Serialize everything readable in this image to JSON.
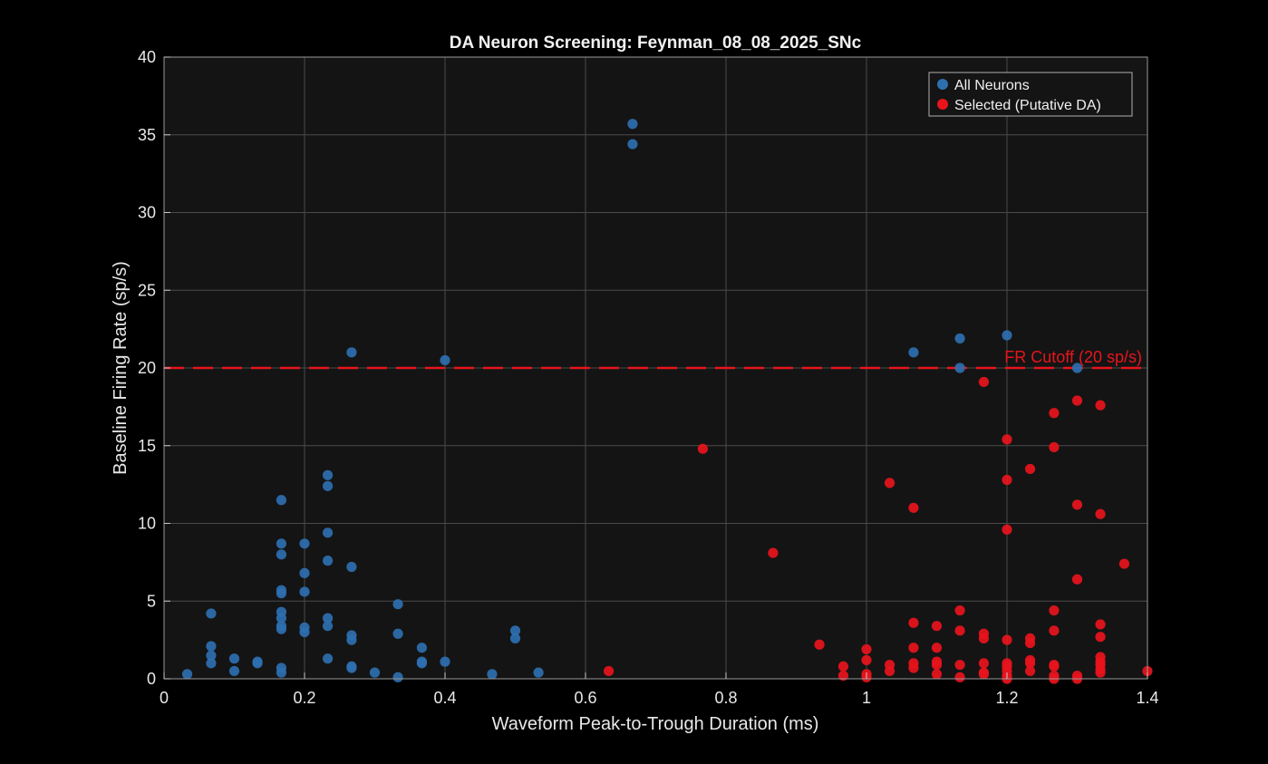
{
  "chart_data": {
    "type": "scatter",
    "title": "DA Neuron Screening: Feynman_08_08_2025_SNc",
    "xlabel": "Waveform Peak-to-Trough Duration (ms)",
    "ylabel": "Baseline Firing Rate (sp/s)",
    "xlim": [
      0,
      1.4
    ],
    "ylim": [
      0,
      40
    ],
    "xticks": [
      "0",
      "0.2",
      "0.4",
      "0.6",
      "0.8",
      "1",
      "1.2",
      "1.4"
    ],
    "xtick_values": [
      0,
      0.2,
      0.4,
      0.6,
      0.8,
      1.0,
      1.2,
      1.4
    ],
    "yticks": [
      "0",
      "5",
      "10",
      "15",
      "20",
      "25",
      "30",
      "35",
      "40"
    ],
    "ytick_values": [
      0,
      5,
      10,
      15,
      20,
      25,
      30,
      35,
      40
    ],
    "grid": true,
    "legend_position": "top-right",
    "background": "#141414",
    "cutoff": {
      "y": 20,
      "label": "FR Cutoff (20 sp/s)",
      "color": "#e8141c"
    },
    "series": [
      {
        "name": "All Neurons",
        "color": "#2e6fb0",
        "points": [
          [
            0.033,
            0.3
          ],
          [
            0.067,
            1.0
          ],
          [
            0.067,
            1.5
          ],
          [
            0.067,
            2.1
          ],
          [
            0.067,
            4.2
          ],
          [
            0.1,
            0.5
          ],
          [
            0.1,
            1.3
          ],
          [
            0.133,
            1.0
          ],
          [
            0.133,
            1.1
          ],
          [
            0.167,
            0.4
          ],
          [
            0.167,
            0.7
          ],
          [
            0.167,
            3.2
          ],
          [
            0.167,
            3.4
          ],
          [
            0.167,
            3.9
          ],
          [
            0.167,
            4.3
          ],
          [
            0.167,
            5.5
          ],
          [
            0.167,
            5.7
          ],
          [
            0.167,
            8.0
          ],
          [
            0.167,
            8.7
          ],
          [
            0.167,
            11.5
          ],
          [
            0.2,
            3.0
          ],
          [
            0.2,
            3.3
          ],
          [
            0.2,
            5.6
          ],
          [
            0.2,
            6.8
          ],
          [
            0.2,
            8.7
          ],
          [
            0.233,
            1.3
          ],
          [
            0.233,
            3.4
          ],
          [
            0.233,
            3.9
          ],
          [
            0.233,
            7.6
          ],
          [
            0.233,
            9.4
          ],
          [
            0.233,
            12.4
          ],
          [
            0.233,
            13.1
          ],
          [
            0.267,
            0.7
          ],
          [
            0.267,
            0.8
          ],
          [
            0.267,
            2.5
          ],
          [
            0.267,
            2.8
          ],
          [
            0.267,
            7.2
          ],
          [
            0.267,
            21.0
          ],
          [
            0.3,
            0.4
          ],
          [
            0.333,
            0.1
          ],
          [
            0.333,
            2.9
          ],
          [
            0.333,
            4.8
          ],
          [
            0.367,
            1.0
          ],
          [
            0.367,
            1.1
          ],
          [
            0.367,
            2.0
          ],
          [
            0.4,
            1.1
          ],
          [
            0.4,
            20.5
          ],
          [
            0.467,
            0.3
          ],
          [
            0.5,
            2.6
          ],
          [
            0.5,
            3.1
          ],
          [
            0.533,
            0.4
          ],
          [
            0.667,
            34.4
          ],
          [
            0.667,
            35.7
          ],
          [
            1.067,
            21.0
          ],
          [
            1.133,
            20.0
          ],
          [
            1.133,
            21.9
          ],
          [
            1.2,
            22.1
          ],
          [
            1.3,
            20.0
          ]
        ]
      },
      {
        "name": "Selected (Putative DA)",
        "color": "#e8141c",
        "points": [
          [
            0.633,
            0.5
          ],
          [
            0.767,
            14.8
          ],
          [
            0.867,
            8.1
          ],
          [
            0.933,
            2.2
          ],
          [
            0.967,
            0.2
          ],
          [
            0.967,
            0.8
          ],
          [
            1.0,
            0.1
          ],
          [
            1.0,
            0.3
          ],
          [
            1.0,
            1.2
          ],
          [
            1.0,
            1.9
          ],
          [
            1.033,
            0.5
          ],
          [
            1.033,
            0.9
          ],
          [
            1.033,
            12.6
          ],
          [
            1.067,
            0.7
          ],
          [
            1.067,
            1.0
          ],
          [
            1.067,
            2.0
          ],
          [
            1.067,
            3.6
          ],
          [
            1.067,
            11.0
          ],
          [
            1.1,
            0.3
          ],
          [
            1.1,
            0.9
          ],
          [
            1.1,
            1.1
          ],
          [
            1.1,
            2.0
          ],
          [
            1.1,
            3.4
          ],
          [
            1.133,
            0.1
          ],
          [
            1.133,
            0.9
          ],
          [
            1.133,
            3.1
          ],
          [
            1.133,
            4.4
          ],
          [
            1.167,
            0.3
          ],
          [
            1.167,
            0.4
          ],
          [
            1.167,
            1.0
          ],
          [
            1.167,
            2.6
          ],
          [
            1.167,
            2.9
          ],
          [
            1.167,
            19.1
          ],
          [
            1.2,
            0.0
          ],
          [
            1.2,
            0.2
          ],
          [
            1.2,
            0.5
          ],
          [
            1.2,
            0.8
          ],
          [
            1.2,
            1.0
          ],
          [
            1.2,
            2.5
          ],
          [
            1.2,
            9.6
          ],
          [
            1.2,
            12.8
          ],
          [
            1.2,
            15.4
          ],
          [
            1.233,
            0.5
          ],
          [
            1.233,
            1.0
          ],
          [
            1.233,
            1.2
          ],
          [
            1.233,
            2.3
          ],
          [
            1.233,
            2.6
          ],
          [
            1.233,
            13.5
          ],
          [
            1.267,
            0.0
          ],
          [
            1.267,
            0.2
          ],
          [
            1.267,
            0.8
          ],
          [
            1.267,
            0.9
          ],
          [
            1.267,
            3.1
          ],
          [
            1.267,
            4.4
          ],
          [
            1.267,
            14.9
          ],
          [
            1.267,
            17.1
          ],
          [
            1.3,
            0.0
          ],
          [
            1.3,
            0.2
          ],
          [
            1.3,
            6.4
          ],
          [
            1.3,
            11.2
          ],
          [
            1.3,
            17.9
          ],
          [
            1.333,
            0.4
          ],
          [
            1.333,
            0.6
          ],
          [
            1.333,
            0.9
          ],
          [
            1.333,
            1.1
          ],
          [
            1.333,
            1.4
          ],
          [
            1.333,
            2.7
          ],
          [
            1.333,
            3.5
          ],
          [
            1.333,
            10.6
          ],
          [
            1.333,
            17.6
          ],
          [
            1.367,
            7.4
          ],
          [
            1.4,
            0.5
          ]
        ]
      }
    ]
  }
}
